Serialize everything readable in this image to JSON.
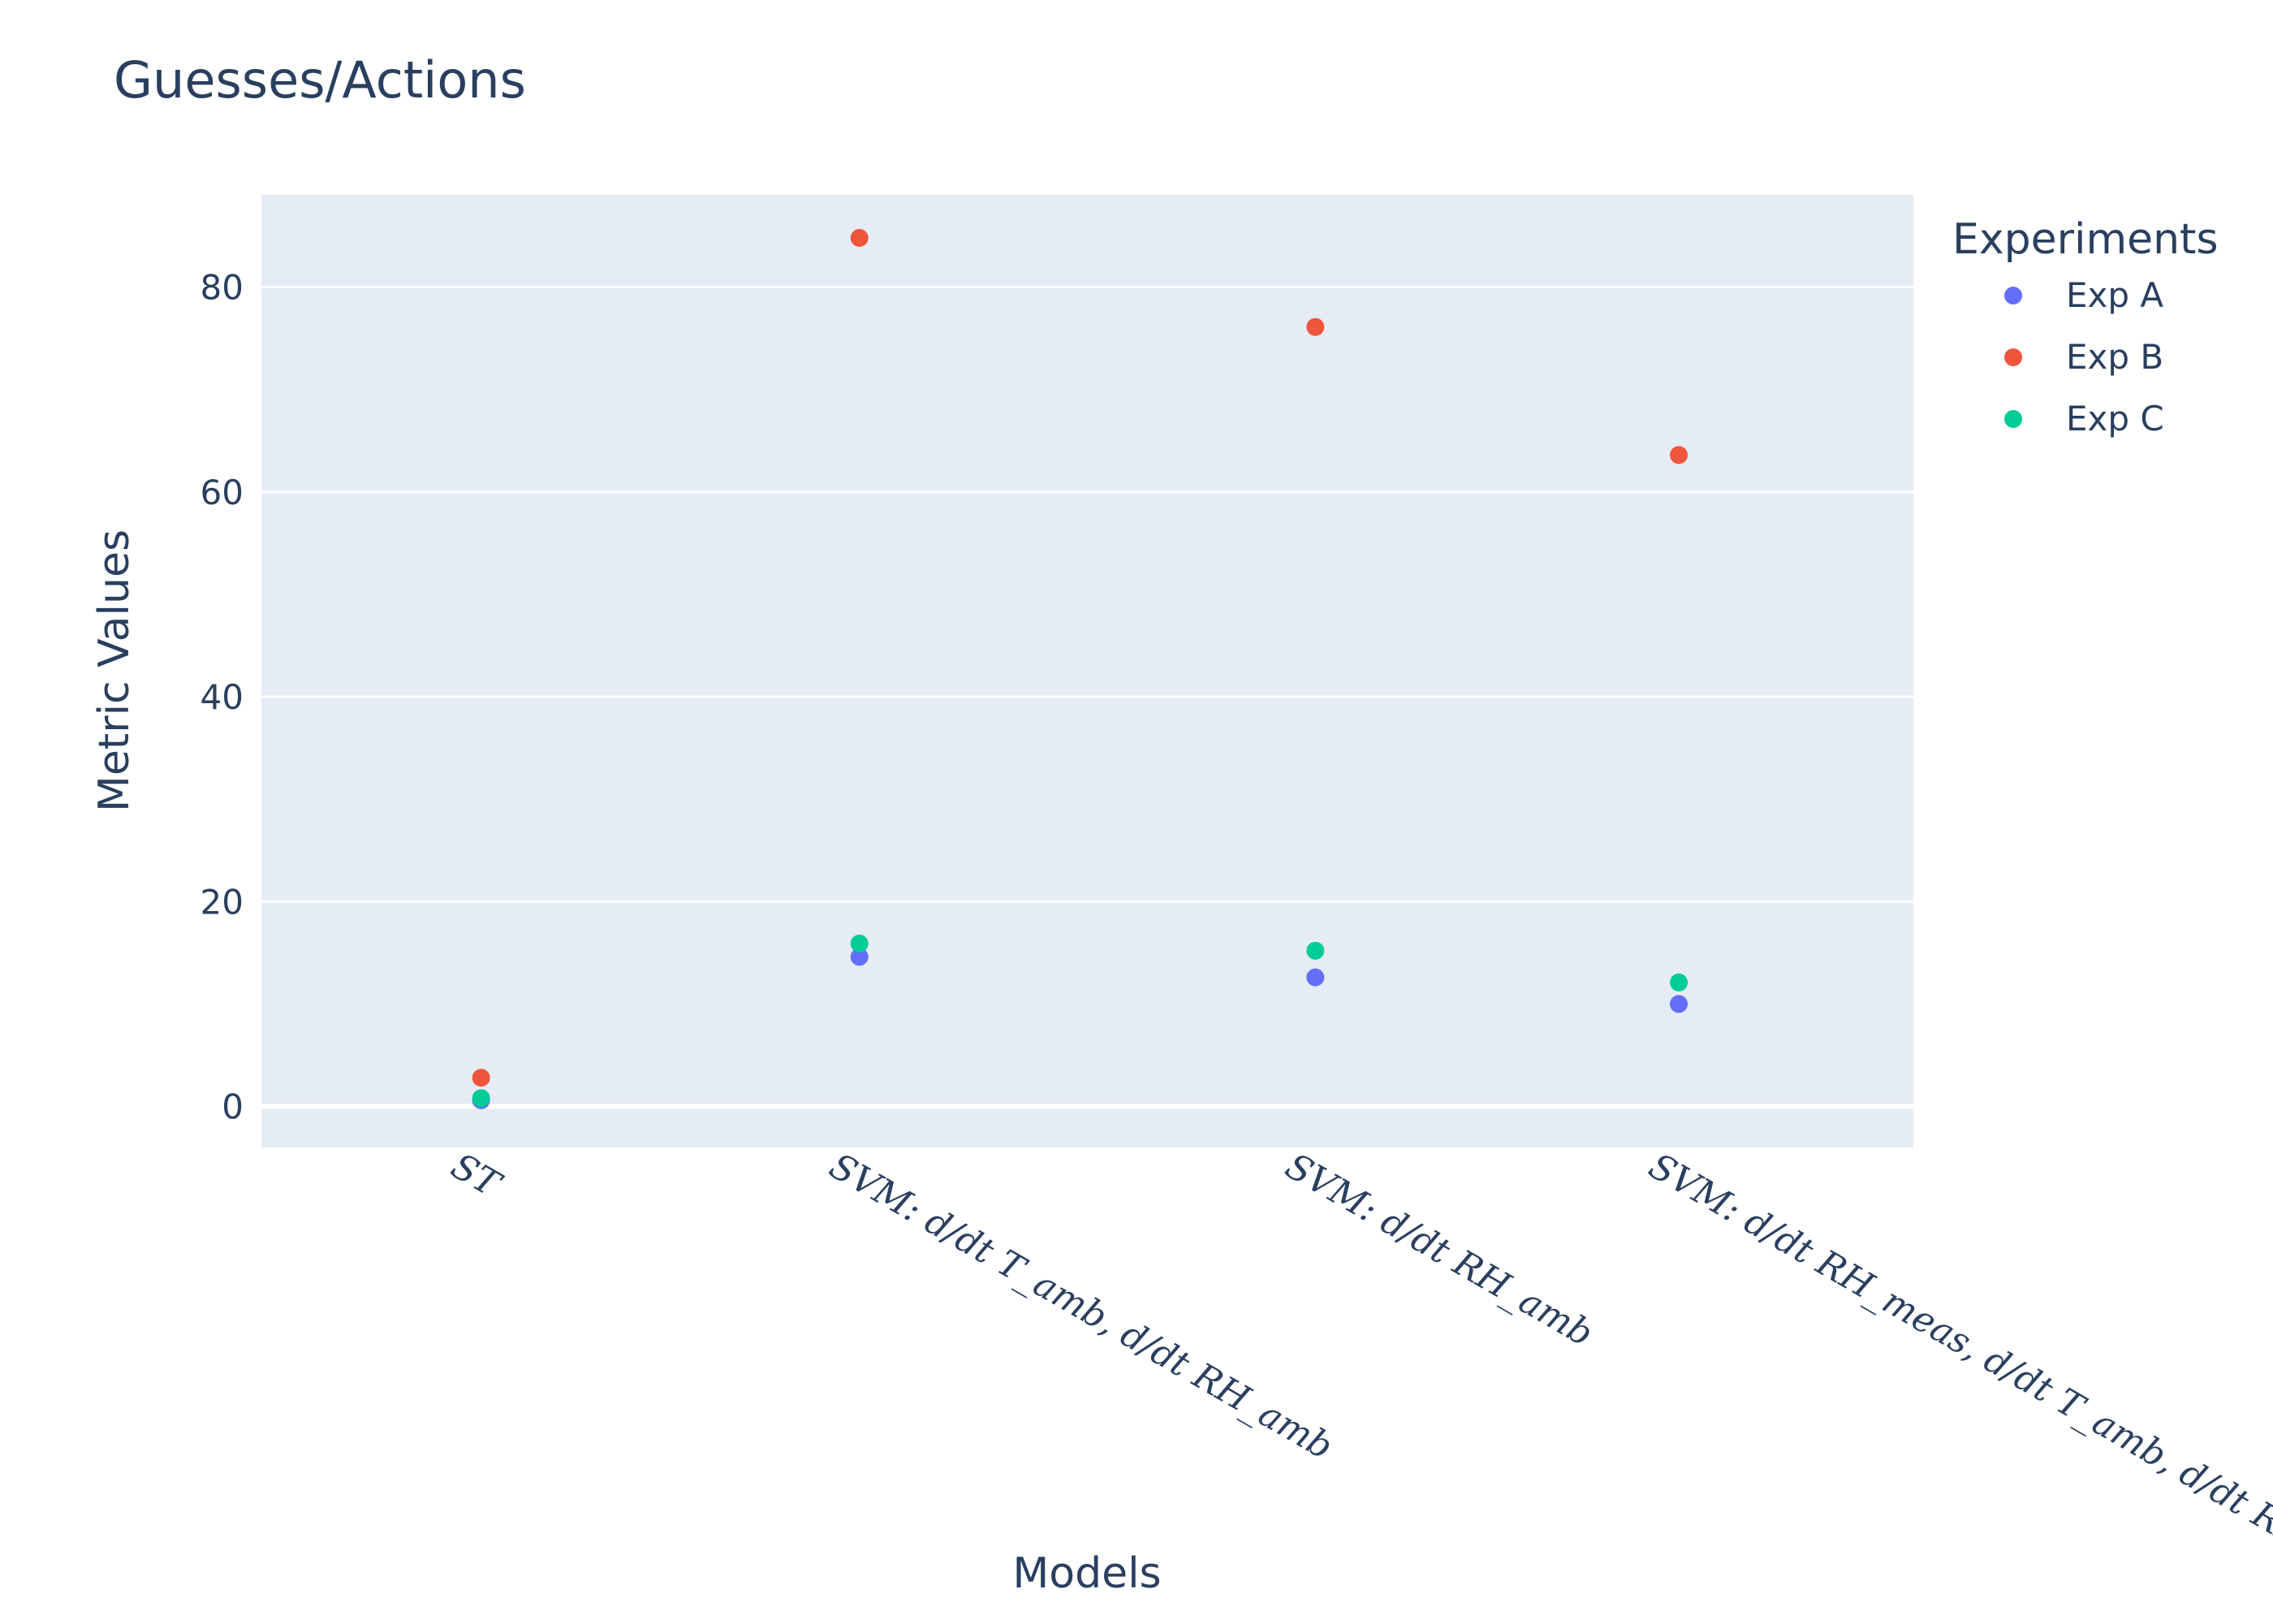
{
  "chart_data": {
    "type": "scatter",
    "title": "Guesses/Actions",
    "xlabel": "Models",
    "ylabel": "Metric Values",
    "categories": [
      "ST",
      "SVM: d/dt T_amb, d/dt RH_amb",
      "SVM: d/dt RH_amb",
      "SVM: d/dt RH_meas, d/dt T_amb, d/dt RH_amb"
    ],
    "ylim": [
      -4,
      89
    ],
    "yticks": [
      0,
      20,
      40,
      60,
      80
    ],
    "grid": true,
    "legend": {
      "title": "Experiments",
      "placement": "top-right"
    },
    "series": [
      {
        "name": "Exp A",
        "color": "#636efa",
        "values": [
          0.6,
          14.6,
          12.6,
          10.0
        ]
      },
      {
        "name": "Exp B",
        "color": "#ef553b",
        "values": [
          2.8,
          84.8,
          76.1,
          63.6
        ]
      },
      {
        "name": "Exp C",
        "color": "#00cc96",
        "values": [
          0.8,
          15.9,
          15.2,
          12.1
        ]
      }
    ]
  }
}
